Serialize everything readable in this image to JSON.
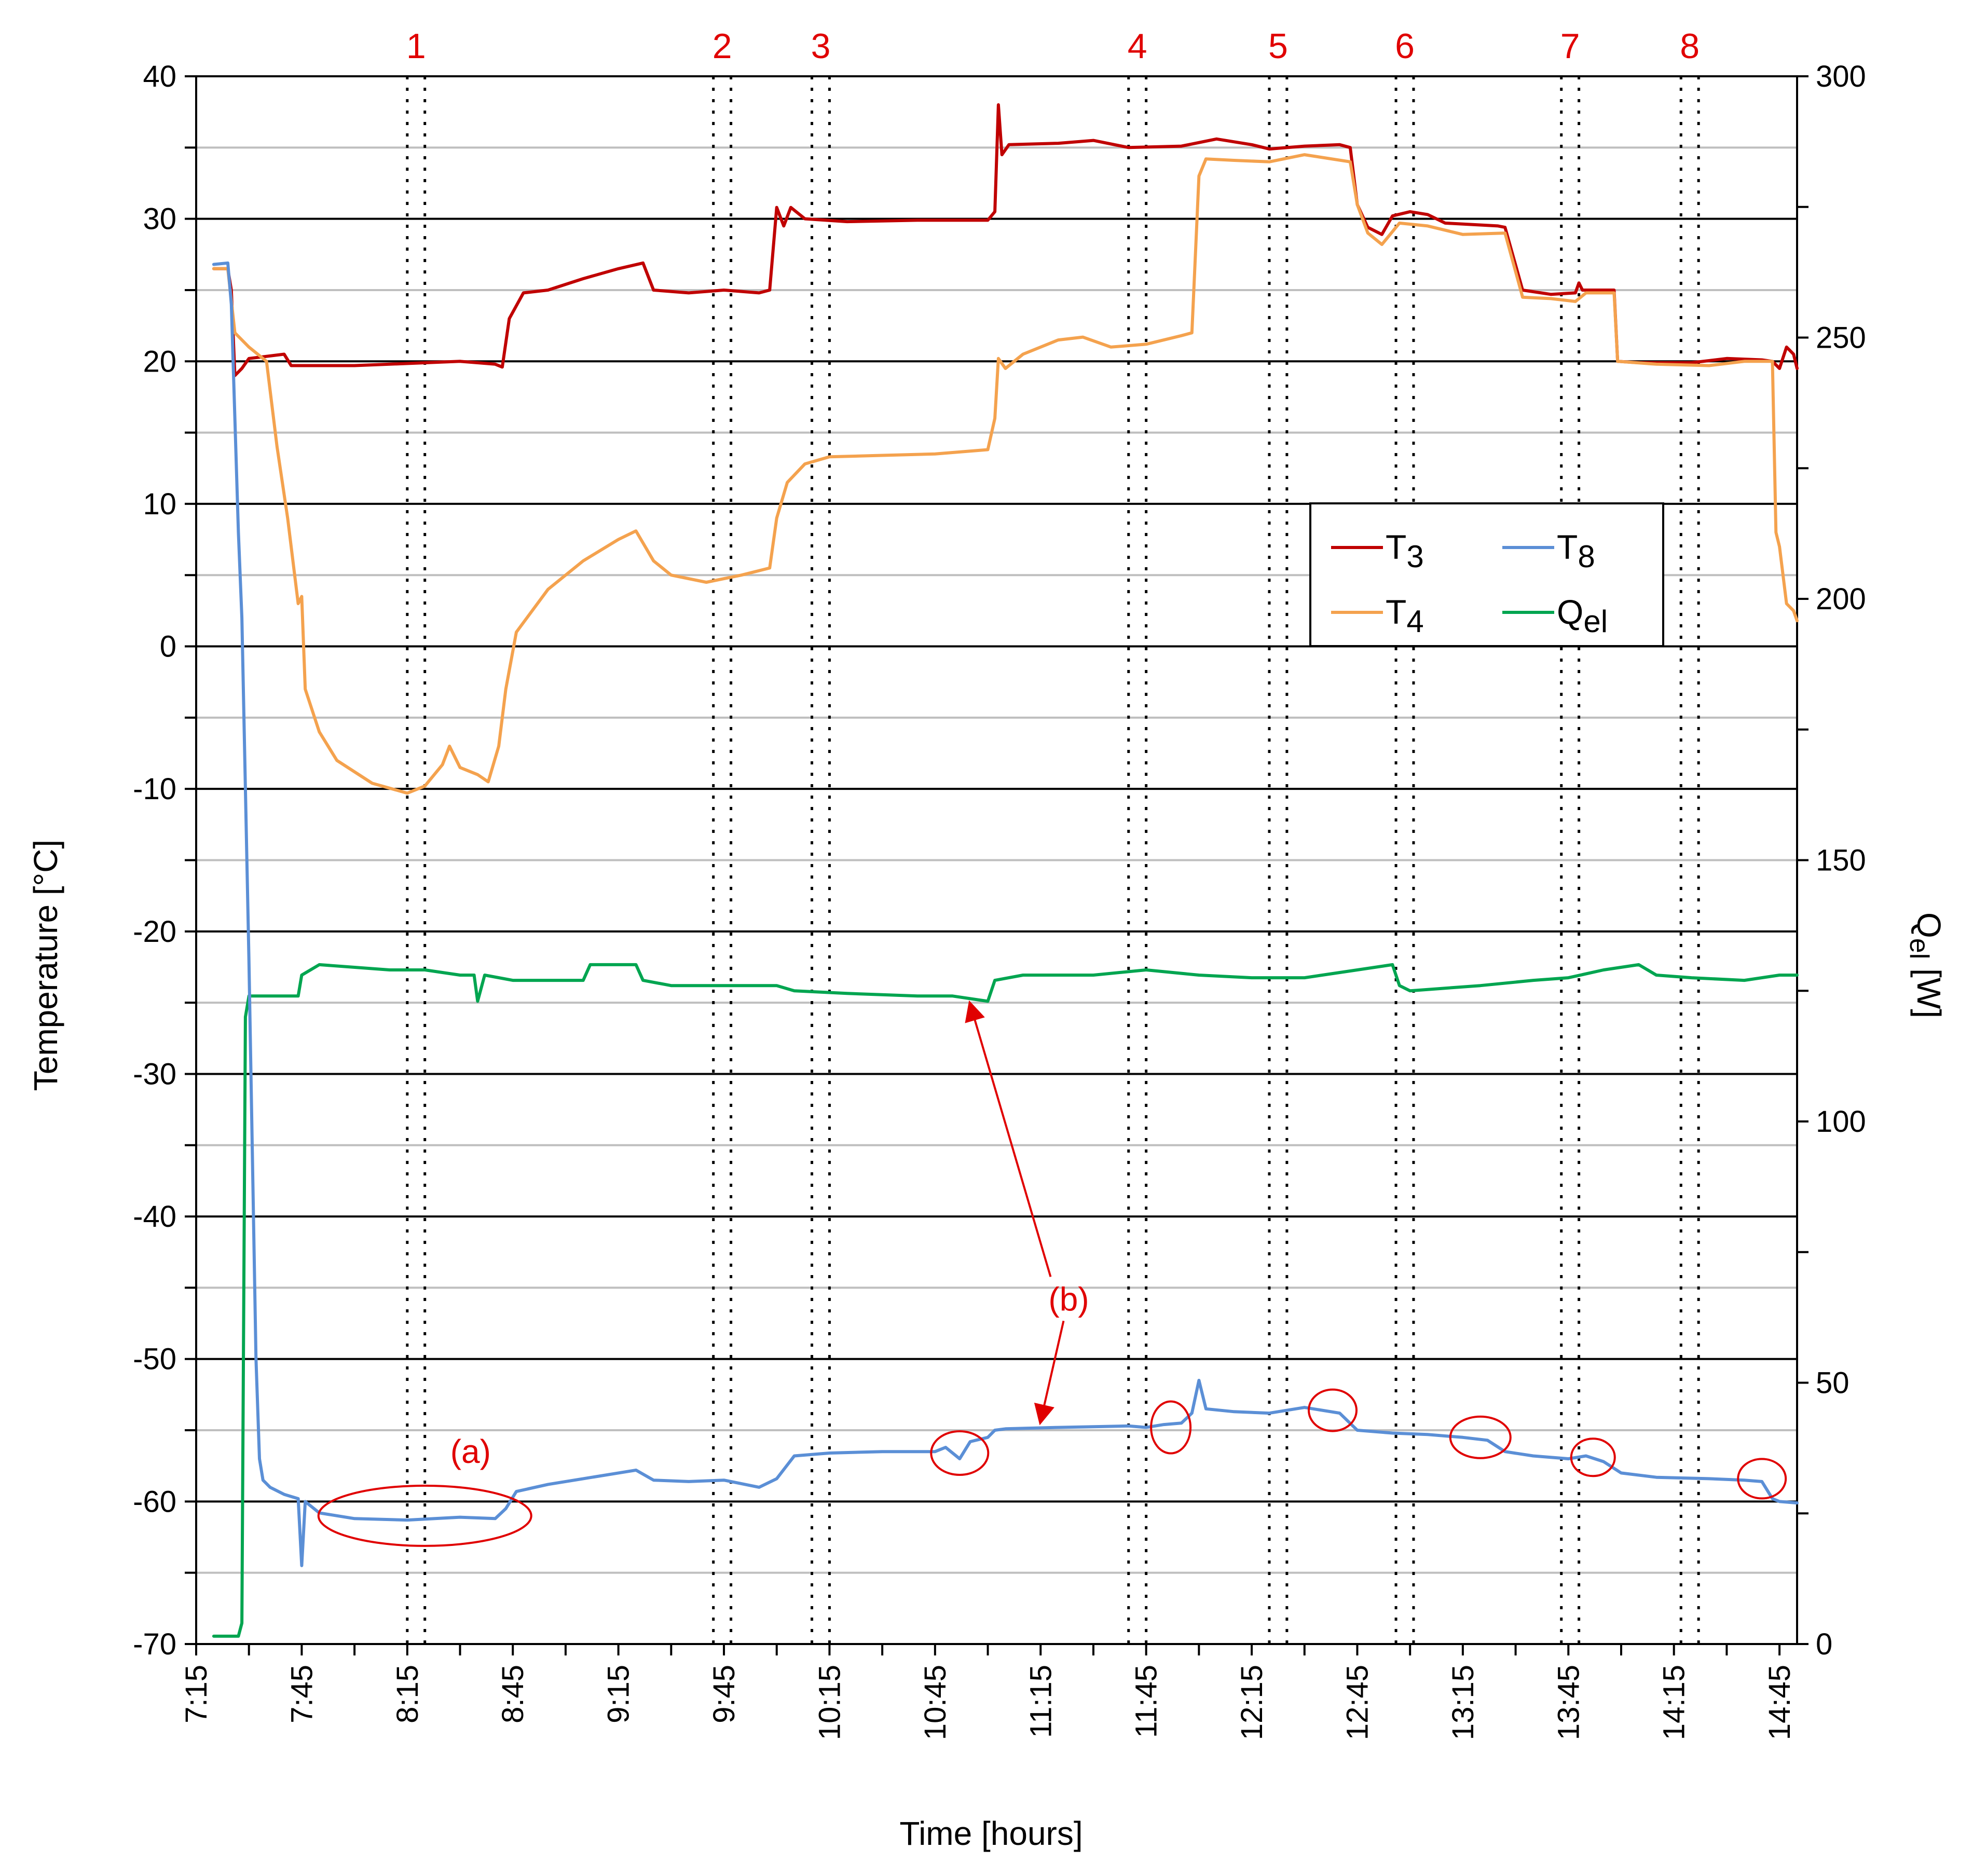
{
  "chart_data": {
    "type": "line",
    "xlabel": "Time [hours]",
    "ylabel_left": "Temperature [°C]",
    "ylabel_right_base": "Q",
    "ylabel_right_sub": "el",
    "ylabel_right_unit": " [W]",
    "xlim": [
      "7:15",
      "14:50"
    ],
    "ylim_left": [
      -70,
      40
    ],
    "ylim_right": [
      0,
      300
    ],
    "x_ticks": [
      "7:15",
      "7:45",
      "8:15",
      "8:45",
      "9:15",
      "9:45",
      "10:15",
      "10:45",
      "11:15",
      "11:45",
      "12:15",
      "12:45",
      "13:15",
      "13:45",
      "14:15",
      "14:45"
    ],
    "y_ticks_left": [
      "40",
      "30",
      "20",
      "10",
      "0",
      "-10",
      "-20",
      "-30",
      "-40",
      "-50",
      "-60",
      "-70"
    ],
    "y_ticks_right": [
      "300",
      "250",
      "200",
      "150",
      "100",
      "50",
      "0"
    ],
    "grid": true,
    "legend_position": "upper-right",
    "legend": [
      {
        "base": "T",
        "sub": "3",
        "color": "#c00000"
      },
      {
        "base": "T",
        "sub": "8",
        "color": "#5b8fd6"
      },
      {
        "base": "T",
        "sub": "4",
        "color": "#f4a24e"
      },
      {
        "base": "Q",
        "sub": "el",
        "color": "#00a550"
      }
    ],
    "periods": [
      {
        "label": "1",
        "start": "8:15",
        "end": "8:20"
      },
      {
        "label": "2",
        "start": "9:42",
        "end": "9:47"
      },
      {
        "label": "3",
        "start": "10:10",
        "end": "10:15"
      },
      {
        "label": "4",
        "start": "11:40",
        "end": "11:45"
      },
      {
        "label": "5",
        "start": "12:20",
        "end": "12:25"
      },
      {
        "label": "6",
        "start": "12:56",
        "end": "13:01"
      },
      {
        "label": "7",
        "start": "13:43",
        "end": "13:48"
      },
      {
        "label": "8",
        "start": "14:17",
        "end": "14:22"
      }
    ],
    "annotations": [
      {
        "label": "(a)",
        "target": "T8 8:00-8:45"
      },
      {
        "label": "(b)",
        "targets": [
          "Qel 10:50",
          "T8 11:15"
        ]
      }
    ],
    "series": [
      {
        "name": "T3",
        "color": "#c00000",
        "axis": "left",
        "points": [
          [
            "7:20",
            26.5
          ],
          [
            "7:24",
            26.5
          ],
          [
            "7:25",
            25
          ],
          [
            "7:26",
            19
          ],
          [
            "7:28",
            19.5
          ],
          [
            "7:30",
            20.2
          ],
          [
            "7:40",
            20.5
          ],
          [
            "7:42",
            19.7
          ],
          [
            "8:00",
            19.7
          ],
          [
            "8:10",
            19.8
          ],
          [
            "8:30",
            20
          ],
          [
            "8:40",
            19.8
          ],
          [
            "8:42",
            19.6
          ],
          [
            "8:44",
            23
          ],
          [
            "8:48",
            24.8
          ],
          [
            "8:55",
            25
          ],
          [
            "9:05",
            25.8
          ],
          [
            "9:15",
            26.5
          ],
          [
            "9:22",
            26.9
          ],
          [
            "9:25",
            25
          ],
          [
            "9:35",
            24.8
          ],
          [
            "9:45",
            25
          ],
          [
            "9:55",
            24.8
          ],
          [
            "9:58",
            25
          ],
          [
            "10:00",
            30.8
          ],
          [
            "10:02",
            29.5
          ],
          [
            "10:04",
            30.8
          ],
          [
            "10:08",
            30
          ],
          [
            "10:20",
            29.8
          ],
          [
            "10:40",
            29.9
          ],
          [
            "11:00",
            29.9
          ],
          [
            "11:02",
            30.5
          ],
          [
            "11:03",
            38
          ],
          [
            "11:04",
            34.5
          ],
          [
            "11:06",
            35.2
          ],
          [
            "11:20",
            35.3
          ],
          [
            "11:30",
            35.5
          ],
          [
            "11:40",
            35
          ],
          [
            "11:55",
            35.1
          ],
          [
            "12:05",
            35.6
          ],
          [
            "12:15",
            35.2
          ],
          [
            "12:20",
            34.9
          ],
          [
            "12:30",
            35.1
          ],
          [
            "12:40",
            35.2
          ],
          [
            "12:43",
            35
          ],
          [
            "12:45",
            31
          ],
          [
            "12:48",
            29.4
          ],
          [
            "12:52",
            28.9
          ],
          [
            "12:55",
            30.2
          ],
          [
            "13:00",
            30.5
          ],
          [
            "13:05",
            30.3
          ],
          [
            "13:10",
            29.7
          ],
          [
            "13:25",
            29.5
          ],
          [
            "13:27",
            29.4
          ],
          [
            "13:32",
            25
          ],
          [
            "13:40",
            24.7
          ],
          [
            "13:47",
            24.8
          ],
          [
            "13:48",
            25.5
          ],
          [
            "13:49",
            25
          ],
          [
            "13:58",
            25
          ],
          [
            "13:59",
            20
          ],
          [
            "14:05",
            19.9
          ],
          [
            "14:20",
            19.9
          ],
          [
            "14:30",
            20.2
          ],
          [
            "14:40",
            20.1
          ],
          [
            "14:43",
            20
          ],
          [
            "14:45",
            19.5
          ],
          [
            "14:47",
            21
          ],
          [
            "14:49",
            20.5
          ],
          [
            "14:50",
            19.5
          ]
        ]
      },
      {
        "name": "T4",
        "color": "#f4a24e",
        "axis": "left",
        "points": [
          [
            "7:20",
            26.5
          ],
          [
            "7:24",
            26.5
          ],
          [
            "7:26",
            22
          ],
          [
            "7:30",
            21
          ],
          [
            "7:35",
            20
          ],
          [
            "7:38",
            14
          ],
          [
            "7:41",
            9
          ],
          [
            "7:44",
            3
          ],
          [
            "7:45",
            3.5
          ],
          [
            "7:46",
            -3
          ],
          [
            "7:50",
            -6
          ],
          [
            "7:55",
            -8
          ],
          [
            "8:05",
            -9.6
          ],
          [
            "8:15",
            -10.3
          ],
          [
            "8:20",
            -9.8
          ],
          [
            "8:25",
            -8.3
          ],
          [
            "8:27",
            -7
          ],
          [
            "8:30",
            -8.5
          ],
          [
            "8:35",
            -9
          ],
          [
            "8:38",
            -9.5
          ],
          [
            "8:41",
            -7
          ],
          [
            "8:43",
            -3
          ],
          [
            "8:46",
            1
          ],
          [
            "8:55",
            4
          ],
          [
            "9:05",
            6
          ],
          [
            "9:15",
            7.5
          ],
          [
            "9:20",
            8.1
          ],
          [
            "9:25",
            6
          ],
          [
            "9:30",
            5
          ],
          [
            "9:40",
            4.5
          ],
          [
            "9:50",
            5
          ],
          [
            "9:58",
            5.5
          ],
          [
            "10:00",
            9
          ],
          [
            "10:03",
            11.5
          ],
          [
            "10:08",
            12.8
          ],
          [
            "10:15",
            13.3
          ],
          [
            "10:30",
            13.4
          ],
          [
            "10:45",
            13.5
          ],
          [
            "11:00",
            13.8
          ],
          [
            "11:02",
            16
          ],
          [
            "11:03",
            20.2
          ],
          [
            "11:05",
            19.5
          ],
          [
            "11:10",
            20.5
          ],
          [
            "11:20",
            21.5
          ],
          [
            "11:27",
            21.7
          ],
          [
            "11:35",
            21
          ],
          [
            "11:45",
            21.2
          ],
          [
            "11:55",
            21.8
          ],
          [
            "11:58",
            22
          ],
          [
            "12:00",
            33
          ],
          [
            "12:02",
            34.2
          ],
          [
            "12:10",
            34.1
          ],
          [
            "12:20",
            34
          ],
          [
            "12:30",
            34.5
          ],
          [
            "12:43",
            34
          ],
          [
            "12:45",
            31
          ],
          [
            "12:48",
            29
          ],
          [
            "12:52",
            28.2
          ],
          [
            "12:57",
            29.7
          ],
          [
            "13:05",
            29.5
          ],
          [
            "13:15",
            28.9
          ],
          [
            "13:27",
            29
          ],
          [
            "13:32",
            24.5
          ],
          [
            "13:40",
            24.4
          ],
          [
            "13:47",
            24.2
          ],
          [
            "13:50",
            24.8
          ],
          [
            "13:58",
            24.8
          ],
          [
            "13:59",
            20
          ],
          [
            "14:10",
            19.8
          ],
          [
            "14:25",
            19.7
          ],
          [
            "14:35",
            20
          ],
          [
            "14:43",
            20
          ],
          [
            "14:44",
            8
          ],
          [
            "14:45",
            7
          ],
          [
            "14:47",
            3
          ],
          [
            "14:49",
            2.5
          ],
          [
            "14:50",
            1.8
          ]
        ]
      },
      {
        "name": "T8",
        "color": "#5b8fd6",
        "axis": "left",
        "points": [
          [
            "7:20",
            26.8
          ],
          [
            "7:24",
            26.9
          ],
          [
            "7:25",
            24
          ],
          [
            "7:27",
            8
          ],
          [
            "7:28",
            2
          ],
          [
            "7:30",
            -22
          ],
          [
            "7:32",
            -50
          ],
          [
            "7:33",
            -57
          ],
          [
            "7:34",
            -58.5
          ],
          [
            "7:36",
            -59
          ],
          [
            "7:40",
            -59.5
          ],
          [
            "7:44",
            -59.8
          ],
          [
            "7:45",
            -64.5
          ],
          [
            "7:46",
            -60
          ],
          [
            "7:50",
            -60.8
          ],
          [
            "8:00",
            -61.2
          ],
          [
            "8:15",
            -61.3
          ],
          [
            "8:30",
            -61.1
          ],
          [
            "8:40",
            -61.2
          ],
          [
            "8:43",
            -60.5
          ],
          [
            "8:46",
            -59.3
          ],
          [
            "8:55",
            -58.8
          ],
          [
            "9:05",
            -58.4
          ],
          [
            "9:15",
            -58
          ],
          [
            "9:20",
            -57.8
          ],
          [
            "9:25",
            -58.5
          ],
          [
            "9:35",
            -58.6
          ],
          [
            "9:45",
            -58.5
          ],
          [
            "9:55",
            -59
          ],
          [
            "10:00",
            -58.4
          ],
          [
            "10:05",
            -56.8
          ],
          [
            "10:15",
            -56.6
          ],
          [
            "10:30",
            -56.5
          ],
          [
            "10:45",
            -56.5
          ],
          [
            "10:48",
            -56.2
          ],
          [
            "10:52",
            -57
          ],
          [
            "10:55",
            -55.8
          ],
          [
            "11:00",
            -55.5
          ],
          [
            "11:02",
            -55
          ],
          [
            "11:05",
            -54.9
          ],
          [
            "11:20",
            -54.8
          ],
          [
            "11:40",
            -54.7
          ],
          [
            "11:45",
            -54.8
          ],
          [
            "11:50",
            -54.6
          ],
          [
            "11:55",
            -54.5
          ],
          [
            "11:58",
            -53.8
          ],
          [
            "12:00",
            -51.5
          ],
          [
            "12:02",
            -53.5
          ],
          [
            "12:10",
            -53.7
          ],
          [
            "12:20",
            -53.8
          ],
          [
            "12:30",
            -53.4
          ],
          [
            "12:40",
            -53.8
          ],
          [
            "12:45",
            -55
          ],
          [
            "12:55",
            -55.2
          ],
          [
            "13:05",
            -55.3
          ],
          [
            "13:15",
            -55.5
          ],
          [
            "13:22",
            -55.7
          ],
          [
            "13:27",
            -56.5
          ],
          [
            "13:35",
            -56.8
          ],
          [
            "13:45",
            -57
          ],
          [
            "13:50",
            -56.8
          ],
          [
            "13:55",
            -57.2
          ],
          [
            "14:00",
            -58
          ],
          [
            "14:10",
            -58.3
          ],
          [
            "14:25",
            -58.4
          ],
          [
            "14:35",
            -58.5
          ],
          [
            "14:40",
            -58.6
          ],
          [
            "14:43",
            -59.8
          ],
          [
            "14:45",
            -60
          ],
          [
            "14:50",
            -60.1
          ]
        ]
      },
      {
        "name": "Qel",
        "color": "#00a550",
        "axis": "right",
        "points": [
          [
            "7:20",
            1.5
          ],
          [
            "7:27",
            1.5
          ],
          [
            "7:28",
            4
          ],
          [
            "7:29",
            120
          ],
          [
            "7:30",
            124
          ],
          [
            "7:35",
            124
          ],
          [
            "7:40",
            124
          ],
          [
            "7:44",
            124
          ],
          [
            "7:45",
            128
          ],
          [
            "7:50",
            130
          ],
          [
            "8:10",
            129
          ],
          [
            "8:20",
            129
          ],
          [
            "8:30",
            128
          ],
          [
            "8:34",
            128
          ],
          [
            "8:35",
            123
          ],
          [
            "8:37",
            128
          ],
          [
            "8:45",
            127
          ],
          [
            "8:55",
            127
          ],
          [
            "9:05",
            127
          ],
          [
            "9:07",
            130
          ],
          [
            "9:20",
            130
          ],
          [
            "9:22",
            127
          ],
          [
            "9:30",
            126
          ],
          [
            "9:45",
            126
          ],
          [
            "9:55",
            126
          ],
          [
            "10:00",
            126
          ],
          [
            "10:05",
            125
          ],
          [
            "10:20",
            124.5
          ],
          [
            "10:40",
            124
          ],
          [
            "10:50",
            124
          ],
          [
            "11:00",
            123
          ],
          [
            "11:02",
            127
          ],
          [
            "11:10",
            128
          ],
          [
            "11:30",
            128
          ],
          [
            "11:45",
            129
          ],
          [
            "12:00",
            128
          ],
          [
            "12:15",
            127.5
          ],
          [
            "12:30",
            127.5
          ],
          [
            "12:45",
            129
          ],
          [
            "12:55",
            130
          ],
          [
            "12:57",
            126
          ],
          [
            "13:00",
            125
          ],
          [
            "13:10",
            125.5
          ],
          [
            "13:20",
            126
          ],
          [
            "13:35",
            127
          ],
          [
            "13:45",
            127.5
          ],
          [
            "13:55",
            129
          ],
          [
            "14:05",
            130
          ],
          [
            "14:10",
            128
          ],
          [
            "14:20",
            127.5
          ],
          [
            "14:35",
            127
          ],
          [
            "14:45",
            128
          ],
          [
            "14:50",
            128
          ]
        ]
      }
    ]
  }
}
